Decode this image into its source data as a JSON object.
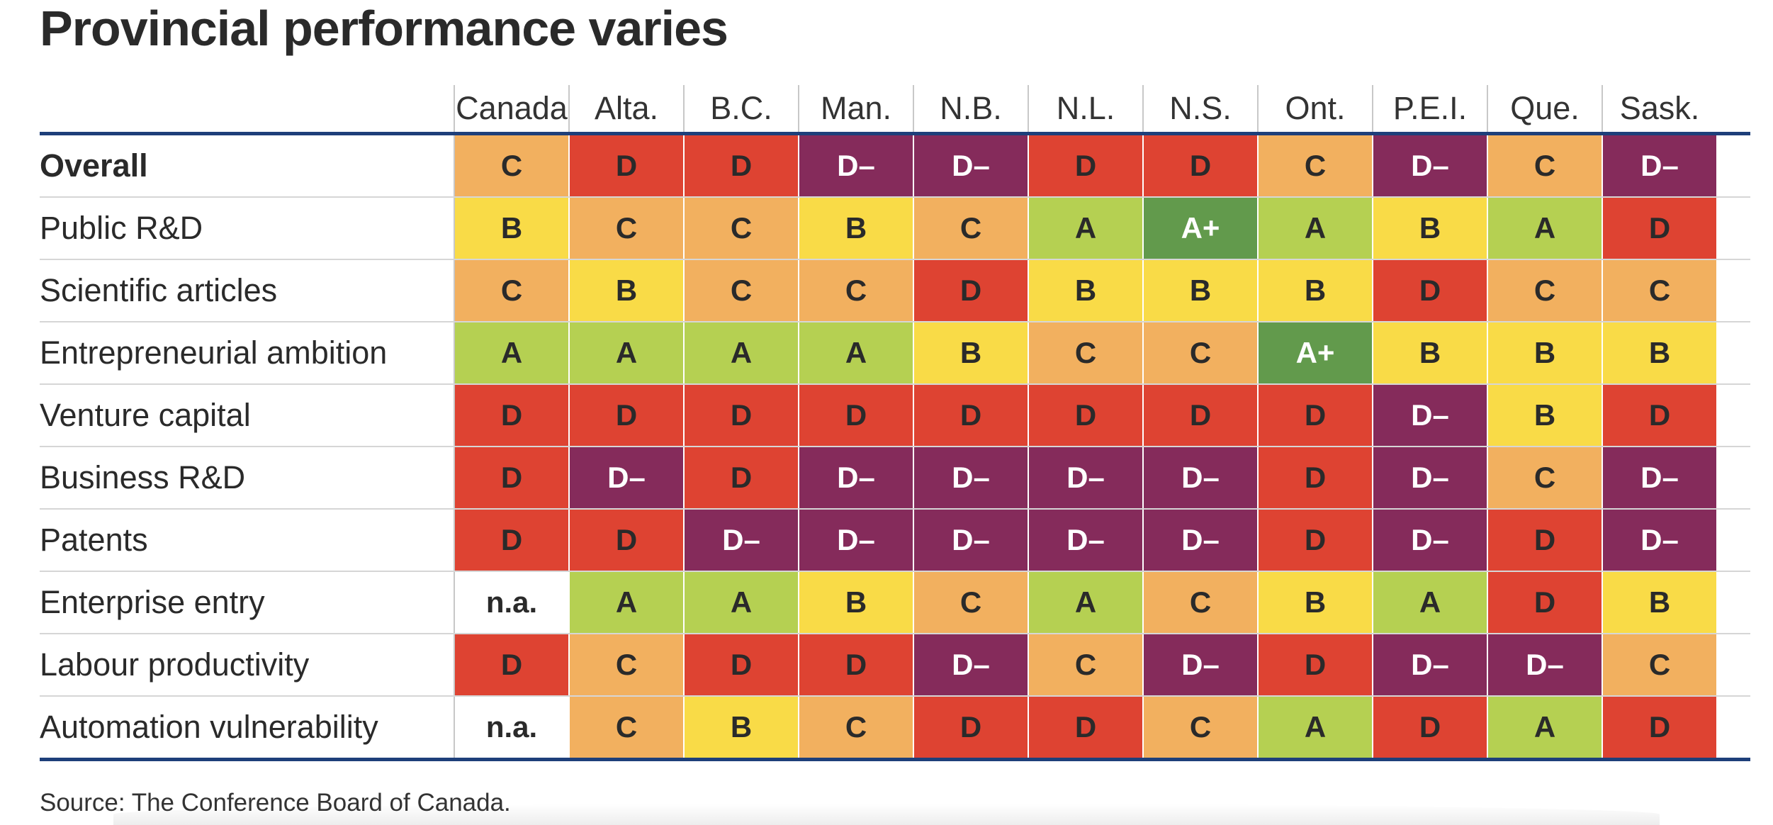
{
  "title": "Provincial performance varies",
  "source": "Source: The Conference Board of Canada.",
  "grade_colors": {
    "A+": "#629a4c",
    "A": "#b5d052",
    "B": "#f9db47",
    "C": "#f2b05f",
    "D": "#de4332",
    "D–": "#852b5b",
    "n.a.": "#ffffff"
  },
  "chart_data": {
    "type": "table",
    "columns": [
      "Canada",
      "Alta.",
      "B.C.",
      "Man.",
      "N.B.",
      "N.L.",
      "N.S.",
      "Ont.",
      "P.E.I.",
      "Que.",
      "Sask."
    ],
    "rows": [
      {
        "label": "Overall",
        "bold": true,
        "values": [
          "C",
          "D",
          "D",
          "D–",
          "D–",
          "D",
          "D",
          "C",
          "D–",
          "C",
          "D–"
        ]
      },
      {
        "label": "Public R&D",
        "values": [
          "B",
          "C",
          "C",
          "B",
          "C",
          "A",
          "A+",
          "A",
          "B",
          "A",
          "D"
        ]
      },
      {
        "label": "Scientific articles",
        "values": [
          "C",
          "B",
          "C",
          "C",
          "D",
          "B",
          "B",
          "B",
          "D",
          "C",
          "C"
        ]
      },
      {
        "label": "Entrepreneurial ambition",
        "values": [
          "A",
          "A",
          "A",
          "A",
          "B",
          "C",
          "C",
          "A+",
          "B",
          "B",
          "B"
        ]
      },
      {
        "label": "Venture capital",
        "values": [
          "D",
          "D",
          "D",
          "D",
          "D",
          "D",
          "D",
          "D",
          "D–",
          "B",
          "D"
        ]
      },
      {
        "label": "Business R&D",
        "values": [
          "D",
          "D–",
          "D",
          "D–",
          "D–",
          "D–",
          "D–",
          "D",
          "D–",
          "C",
          "D–"
        ]
      },
      {
        "label": "Patents",
        "values": [
          "D",
          "D",
          "D–",
          "D–",
          "D–",
          "D–",
          "D–",
          "D",
          "D–",
          "D",
          "D–"
        ]
      },
      {
        "label": "Enterprise entry",
        "values": [
          "n.a.",
          "A",
          "A",
          "B",
          "C",
          "A",
          "C",
          "B",
          "A",
          "D",
          "B"
        ]
      },
      {
        "label": "Labour productivity",
        "values": [
          "D",
          "C",
          "D",
          "D",
          "D–",
          "C",
          "D–",
          "D",
          "D–",
          "D–",
          "C"
        ]
      },
      {
        "label": "Automation vulnerability",
        "values": [
          "n.a.",
          "C",
          "B",
          "C",
          "D",
          "D",
          "C",
          "A",
          "D",
          "A",
          "D"
        ]
      }
    ]
  }
}
